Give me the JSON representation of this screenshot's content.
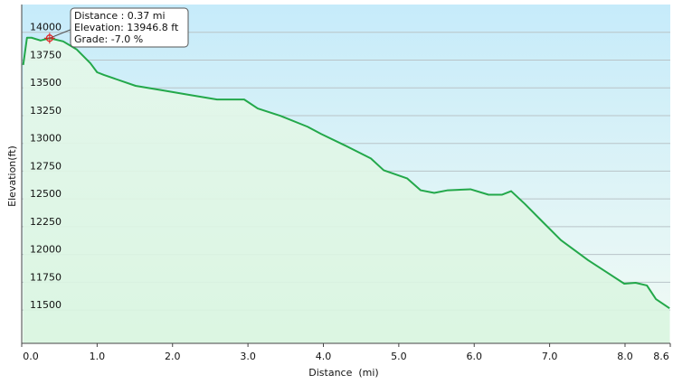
{
  "chart_data": {
    "type": "line",
    "x_label": "Distance  (mi)",
    "y_label": "Elevation(ft)",
    "x": [
      0.02,
      0.07,
      0.13,
      0.25,
      0.37,
      0.55,
      0.73,
      0.91,
      1.0,
      1.09,
      1.51,
      1.87,
      2.23,
      2.59,
      2.95,
      3.13,
      3.43,
      3.79,
      3.97,
      4.27,
      4.63,
      4.8,
      5.11,
      5.29,
      5.47,
      5.65,
      5.95,
      6.19,
      6.37,
      6.49,
      6.67,
      6.91,
      7.15,
      7.51,
      7.75,
      7.99,
      8.14,
      8.29,
      8.41,
      8.59
    ],
    "series": [
      {
        "color": "#23a84a",
        "values": [
          13706,
          13951,
          13951,
          13926,
          13947,
          13918,
          13845,
          13722,
          13640,
          13616,
          13518,
          13477,
          13436,
          13395,
          13395,
          13314,
          13248,
          13150,
          13085,
          12987,
          12864,
          12758,
          12685,
          12578,
          12554,
          12578,
          12587,
          12538,
          12538,
          12570,
          12456,
          12292,
          12129,
          11949,
          11843,
          11737,
          11745,
          11721,
          11598,
          11516
        ]
      }
    ],
    "xlim": [
      0,
      8.6
    ],
    "ylim": [
      11200,
      14250
    ],
    "xticks": [
      {
        "value": 0,
        "label": "0.0"
      },
      {
        "value": 1,
        "label": "1.0"
      },
      {
        "value": 2,
        "label": "2.0"
      },
      {
        "value": 3,
        "label": "3.0"
      },
      {
        "value": 4,
        "label": "4.0"
      },
      {
        "value": 5,
        "label": "5.0"
      },
      {
        "value": 6,
        "label": "6.0"
      },
      {
        "value": 7,
        "label": "7.0"
      },
      {
        "value": 8,
        "label": "8.0"
      },
      8.6
    ],
    "yticks": [
      11500,
      11750,
      12000,
      12250,
      12500,
      12750,
      13000,
      13250,
      13500,
      13750,
      14000
    ],
    "grid": true,
    "tooltip": {
      "point_index": 4,
      "lines": [
        "Distance : 0.37 mi",
        "Elevation: 13946.8 ft",
        "Grade: -7.0 %"
      ]
    }
  }
}
